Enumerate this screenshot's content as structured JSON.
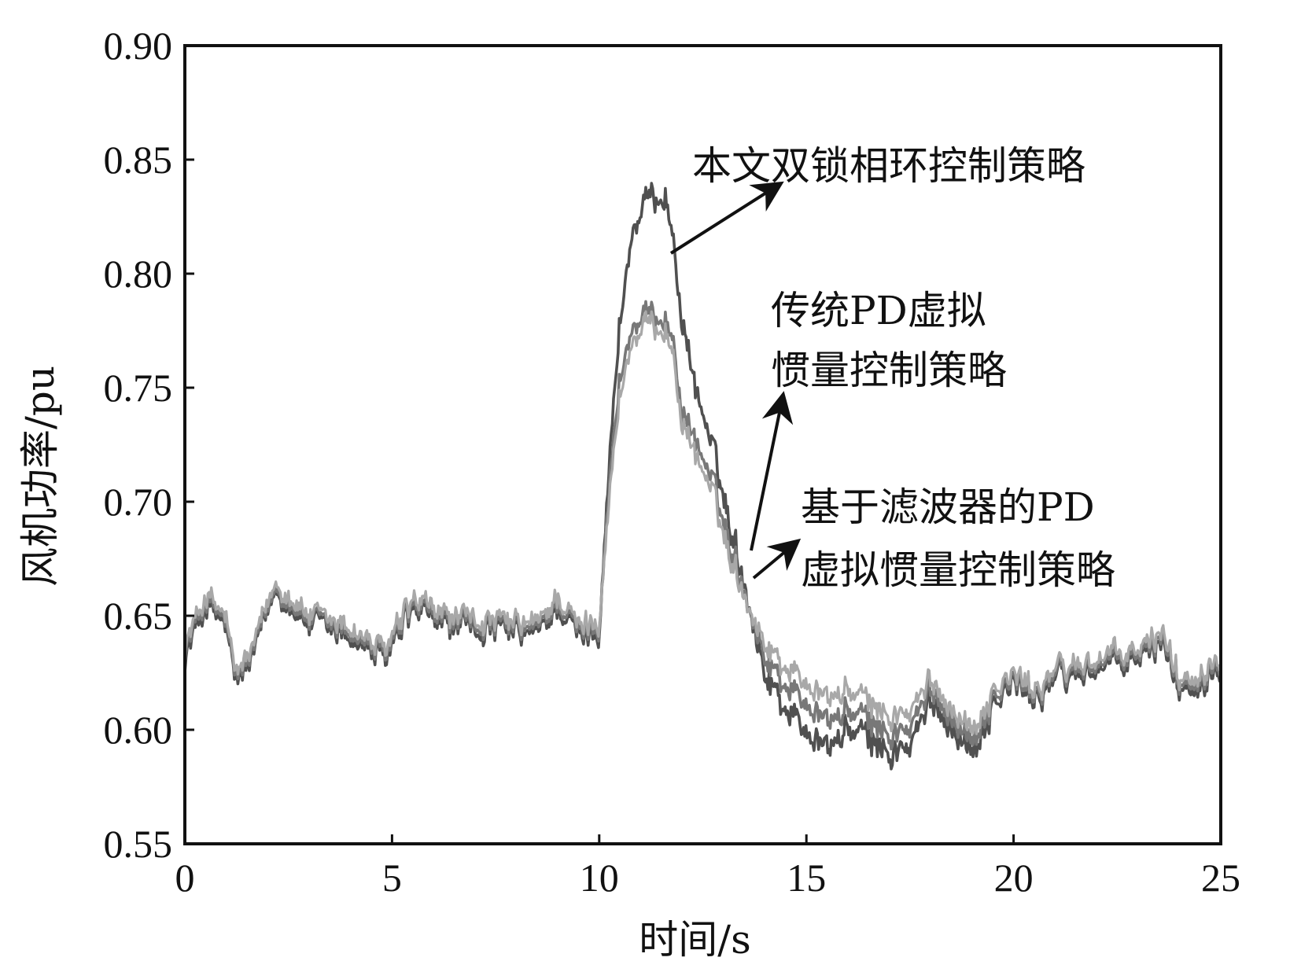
{
  "chart_data": {
    "type": "line",
    "xlabel": "时间/s",
    "ylabel": "风机功率/pu",
    "xlim": [
      0,
      25
    ],
    "ylim": [
      0.55,
      0.9
    ],
    "xticks": [
      0,
      5,
      10,
      15,
      20,
      25
    ],
    "yticks": [
      0.55,
      0.6,
      0.65,
      0.7,
      0.75,
      0.8,
      0.85,
      0.9
    ],
    "xtick_labels": [
      "0",
      "5",
      "10",
      "15",
      "20",
      "25"
    ],
    "ytick_labels": [
      "0.55",
      "0.60",
      "0.65",
      "0.70",
      "0.75",
      "0.80",
      "0.85",
      "0.90"
    ],
    "grid": false,
    "legend": "none",
    "annotations": [
      {
        "lines": [
          "本文双锁相环控制策略"
        ],
        "points_to_series": 0
      },
      {
        "lines": [
          "传统PD虚拟",
          "惯量控制策略"
        ],
        "points_to_series": 1
      },
      {
        "lines": [
          "基于滤波器的PD",
          "虚拟惯量控制策略"
        ],
        "points_to_series": 2
      }
    ],
    "series": [
      {
        "color": "#505050",
        "x": [
          0,
          0.5,
          1.0,
          1.2,
          1.6,
          2.2,
          3.0,
          4.0,
          4.8,
          5.5,
          6.5,
          7.5,
          8.5,
          9.0,
          9.5,
          10.0,
          10.2,
          10.5,
          10.8,
          11.2,
          11.6,
          11.8,
          12.0,
          12.3,
          12.7,
          13.1,
          13.5,
          14.0,
          14.5,
          15.0,
          15.5,
          16.0,
          16.5,
          17.0,
          17.5,
          18.0,
          18.5,
          19.0,
          19.5,
          20.0,
          20.5,
          21.0,
          22.0,
          23.0,
          23.6,
          24.0,
          24.5,
          25.0
        ],
        "y": [
          0.632,
          0.655,
          0.645,
          0.62,
          0.63,
          0.662,
          0.646,
          0.641,
          0.63,
          0.652,
          0.645,
          0.643,
          0.642,
          0.655,
          0.641,
          0.645,
          0.705,
          0.78,
          0.818,
          0.833,
          0.835,
          0.812,
          0.78,
          0.752,
          0.725,
          0.695,
          0.665,
          0.625,
          0.61,
          0.6,
          0.592,
          0.6,
          0.596,
          0.59,
          0.592,
          0.612,
          0.603,
          0.59,
          0.611,
          0.62,
          0.614,
          0.622,
          0.627,
          0.63,
          0.64,
          0.618,
          0.622,
          0.63
        ]
      },
      {
        "color": "#787878",
        "x": [
          0,
          0.5,
          1.0,
          1.2,
          1.6,
          2.2,
          3.0,
          4.0,
          4.8,
          5.5,
          6.5,
          7.5,
          8.5,
          9.0,
          9.5,
          10.0,
          10.2,
          10.5,
          10.8,
          11.2,
          11.6,
          11.8,
          12.0,
          12.3,
          12.7,
          13.1,
          13.5,
          14.0,
          14.5,
          15.0,
          15.5,
          16.0,
          16.5,
          17.0,
          17.5,
          18.0,
          18.5,
          19.0,
          19.5,
          20.0,
          20.5,
          21.0,
          22.0,
          23.0,
          23.6,
          24.0,
          24.5,
          25.0
        ],
        "y": [
          0.635,
          0.657,
          0.647,
          0.622,
          0.632,
          0.663,
          0.648,
          0.643,
          0.632,
          0.654,
          0.647,
          0.645,
          0.644,
          0.657,
          0.643,
          0.647,
          0.698,
          0.755,
          0.776,
          0.782,
          0.781,
          0.768,
          0.74,
          0.728,
          0.71,
          0.685,
          0.662,
          0.632,
          0.62,
          0.612,
          0.604,
          0.608,
          0.604,
          0.598,
          0.6,
          0.617,
          0.607,
          0.595,
          0.614,
          0.622,
          0.616,
          0.624,
          0.629,
          0.632,
          0.642,
          0.62,
          0.624,
          0.632
        ]
      },
      {
        "color": "#a8a8a8",
        "x": [
          0,
          0.5,
          1.0,
          1.2,
          1.6,
          2.2,
          3.0,
          4.0,
          4.8,
          5.5,
          6.5,
          7.5,
          8.5,
          9.0,
          9.5,
          10.0,
          10.2,
          10.5,
          10.8,
          11.2,
          11.6,
          11.8,
          12.0,
          12.3,
          12.7,
          13.1,
          13.5,
          14.0,
          14.5,
          15.0,
          15.5,
          16.0,
          16.5,
          17.0,
          17.5,
          18.0,
          18.5,
          19.0,
          19.5,
          20.0,
          20.5,
          21.0,
          22.0,
          23.0,
          23.6,
          24.0,
          24.5,
          25.0
        ],
        "y": [
          0.637,
          0.659,
          0.649,
          0.624,
          0.634,
          0.665,
          0.65,
          0.645,
          0.634,
          0.656,
          0.649,
          0.647,
          0.646,
          0.659,
          0.645,
          0.649,
          0.693,
          0.748,
          0.77,
          0.778,
          0.776,
          0.762,
          0.735,
          0.722,
          0.705,
          0.68,
          0.66,
          0.638,
          0.628,
          0.621,
          0.614,
          0.617,
          0.612,
          0.606,
          0.607,
          0.621,
          0.611,
          0.6,
          0.617,
          0.624,
          0.618,
          0.626,
          0.631,
          0.634,
          0.644,
          0.622,
          0.626,
          0.634
        ]
      }
    ]
  }
}
